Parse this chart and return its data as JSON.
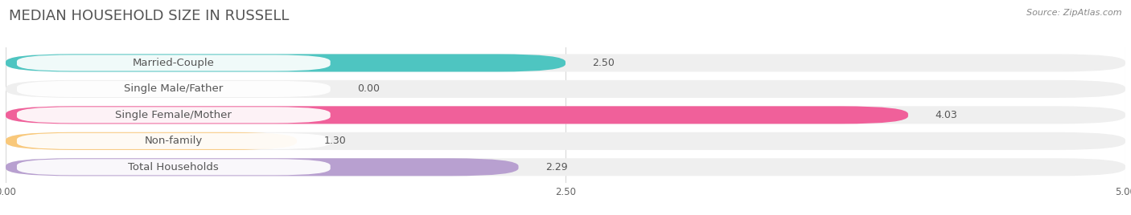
{
  "title": "MEDIAN HOUSEHOLD SIZE IN RUSSELL",
  "source": "Source: ZipAtlas.com",
  "categories": [
    "Married-Couple",
    "Single Male/Father",
    "Single Female/Mother",
    "Non-family",
    "Total Households"
  ],
  "values": [
    2.5,
    0.0,
    4.03,
    1.3,
    2.29
  ],
  "bar_colors": [
    "#4ec5c1",
    "#a8b8e8",
    "#f0609a",
    "#f9c87a",
    "#b8a0d0"
  ],
  "background_color": "#ffffff",
  "bar_bg_color": "#efefef",
  "xlim": [
    0,
    5.0
  ],
  "xticks": [
    0.0,
    2.5,
    5.0
  ],
  "label_fontsize": 9.5,
  "title_fontsize": 13,
  "value_fontsize": 9,
  "source_fontsize": 8
}
